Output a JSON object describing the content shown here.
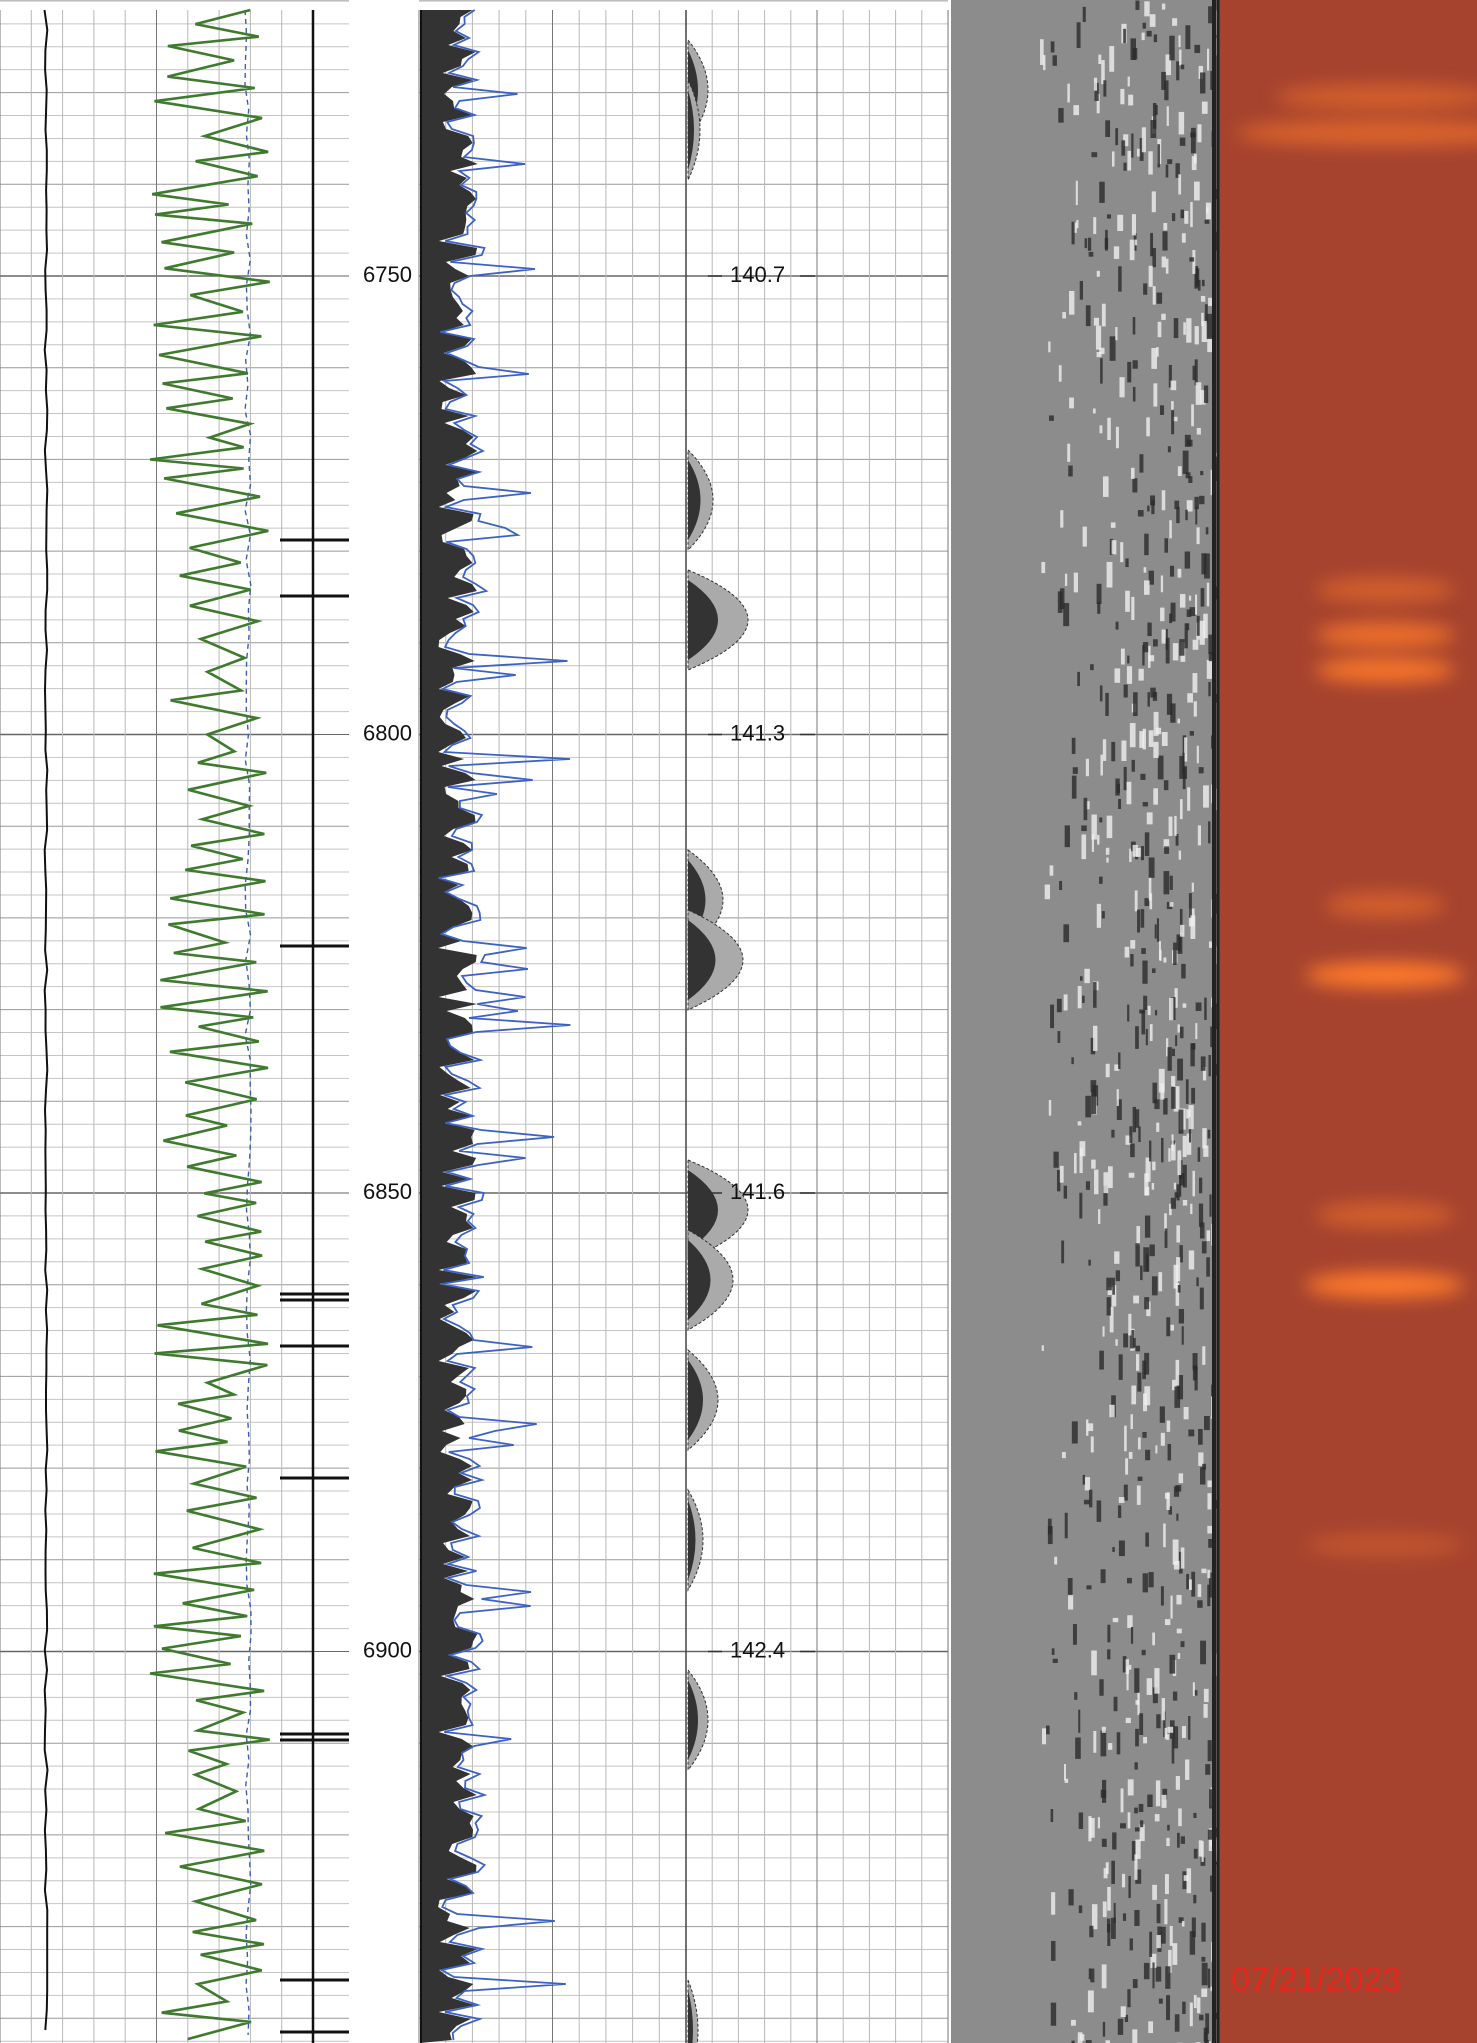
{
  "depth_labels": [
    "6750",
    "6800",
    "6850",
    "6900"
  ],
  "track_values": [
    "140.7",
    "141.3",
    "141.6",
    "142.4"
  ],
  "date": "07/21/2023"
}
